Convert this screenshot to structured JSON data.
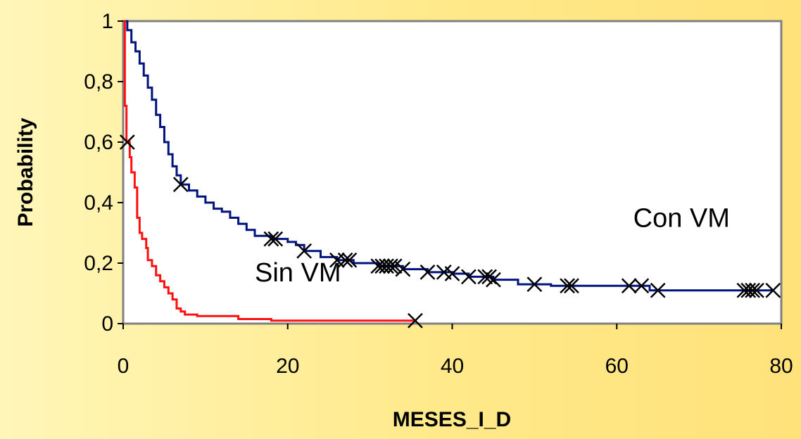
{
  "chart_data": {
    "type": "line",
    "xlabel": "MESES_I_D",
    "ylabel": "Probability",
    "xlim": [
      0,
      80
    ],
    "ylim": [
      0,
      1
    ],
    "x_ticks": [
      0,
      20,
      40,
      60,
      80
    ],
    "x_tick_labels": [
      "0",
      "20",
      "40",
      "60",
      "80"
    ],
    "y_ticks": [
      0,
      0.2,
      0.4,
      0.6,
      0.8,
      1
    ],
    "y_tick_labels": [
      "0",
      "0,2",
      "0,4",
      "0,6",
      "0,8",
      "1"
    ],
    "grid": false,
    "series": [
      {
        "name": "Con VM",
        "color": "#00137f",
        "step": [
          [
            0,
            1
          ],
          [
            0.5,
            0.97
          ],
          [
            1,
            0.93
          ],
          [
            1.5,
            0.9
          ],
          [
            2,
            0.86
          ],
          [
            2.5,
            0.82
          ],
          [
            3,
            0.78
          ],
          [
            3.5,
            0.74
          ],
          [
            4,
            0.69
          ],
          [
            4.5,
            0.65
          ],
          [
            5,
            0.6
          ],
          [
            5.5,
            0.56
          ],
          [
            6,
            0.52
          ],
          [
            6.5,
            0.49
          ],
          [
            7,
            0.46
          ],
          [
            8,
            0.44
          ],
          [
            9,
            0.42
          ],
          [
            10,
            0.4
          ],
          [
            11,
            0.38
          ],
          [
            12,
            0.37
          ],
          [
            13,
            0.35
          ],
          [
            14,
            0.33
          ],
          [
            15,
            0.31
          ],
          [
            16,
            0.29
          ],
          [
            18,
            0.28
          ],
          [
            20,
            0.27
          ],
          [
            21,
            0.26
          ],
          [
            22,
            0.24
          ],
          [
            24,
            0.22
          ],
          [
            26,
            0.21
          ],
          [
            28,
            0.2
          ],
          [
            31,
            0.19
          ],
          [
            34,
            0.18
          ],
          [
            37,
            0.17
          ],
          [
            40,
            0.165
          ],
          [
            42,
            0.155
          ],
          [
            45,
            0.145
          ],
          [
            48,
            0.13
          ],
          [
            52,
            0.125
          ],
          [
            58,
            0.125
          ],
          [
            64,
            0.11
          ],
          [
            79,
            0.11
          ]
        ],
        "censored_x": [
          7,
          18,
          18.5,
          22,
          26,
          27,
          27.5,
          31,
          31.5,
          32,
          32.5,
          33,
          34,
          37,
          39,
          40,
          42,
          44,
          44.5,
          45,
          50,
          54,
          54.5,
          61.5,
          63,
          65,
          75.5,
          76,
          76.5,
          77,
          79
        ]
      },
      {
        "name": "Sin VM",
        "color": "#ff1010",
        "step": [
          [
            0,
            1
          ],
          [
            0.2,
            0.72
          ],
          [
            0.4,
            0.6
          ],
          [
            0.8,
            0.55
          ],
          [
            1,
            0.5
          ],
          [
            1.4,
            0.45
          ],
          [
            1.7,
            0.35
          ],
          [
            2,
            0.3
          ],
          [
            2.3,
            0.28
          ],
          [
            2.8,
            0.25
          ],
          [
            3,
            0.21
          ],
          [
            3.5,
            0.19
          ],
          [
            4,
            0.16
          ],
          [
            4.5,
            0.14
          ],
          [
            5,
            0.12
          ],
          [
            5.5,
            0.1
          ],
          [
            6,
            0.08
          ],
          [
            6.5,
            0.05
          ],
          [
            7,
            0.04
          ],
          [
            7.5,
            0.03
          ],
          [
            9,
            0.025
          ],
          [
            14,
            0.015
          ],
          [
            18,
            0.01
          ],
          [
            35.5,
            0.01
          ]
        ],
        "censored_x": [
          0.5,
          35.5
        ]
      }
    ],
    "annotations": [
      {
        "text": "Con VM",
        "x": 62,
        "y": 0.32
      },
      {
        "text": "Sin VM",
        "x": 16,
        "y": 0.14
      }
    ]
  }
}
